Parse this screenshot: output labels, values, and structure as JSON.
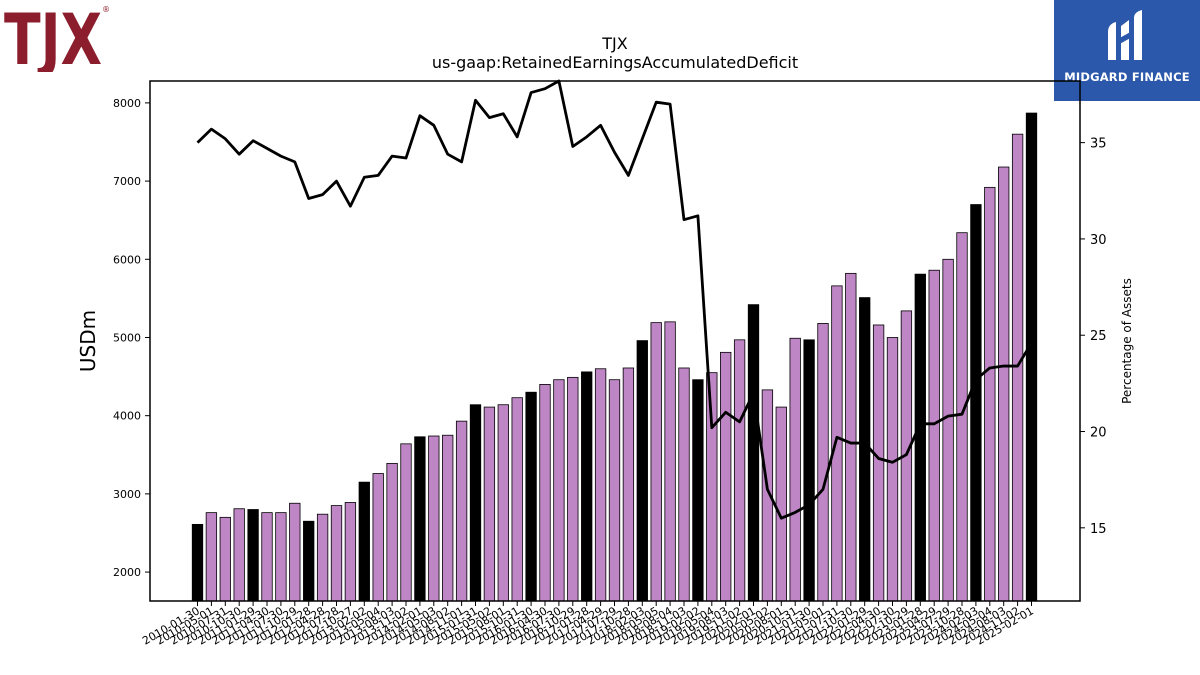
{
  "logos": {
    "left": {
      "text": "TJX",
      "registered": "®",
      "color": "#8c1d2c"
    },
    "right": {
      "text": "MIDGARD FINANCE",
      "background": "#2b58ab",
      "color": "#ffffff"
    }
  },
  "chart_data": {
    "type": "bar",
    "title": "TJX",
    "subtitle": "us-gaap:RetainedEarningsAccumulatedDeficit",
    "ylabel": "USDm",
    "y2label": "Percentage of Assets",
    "ylim": [
      1630,
      8280
    ],
    "y2lim": [
      11.2,
      38.2
    ],
    "yticks": [
      2000,
      3000,
      4000,
      5000,
      6000,
      7000,
      8000
    ],
    "y2ticks": [
      15,
      20,
      25,
      30,
      35
    ],
    "colors": {
      "fiscal_year_end_bar": "#000000",
      "quarter_bar": "#bf86c6",
      "line": "#000000"
    },
    "categories": [
      "2010-01-30",
      "2010-05-01",
      "2010-07-31",
      "2010-10-30",
      "2011-01-29",
      "2011-04-30",
      "2011-07-30",
      "2011-10-29",
      "2012-01-28",
      "2012-04-28",
      "2012-07-28",
      "2012-10-27",
      "2013-02-02",
      "2013-05-04",
      "2013-08-03",
      "2013-11-02",
      "2014-02-01",
      "2014-05-03",
      "2014-08-02",
      "2014-11-01",
      "2015-01-31",
      "2015-05-02",
      "2015-08-01",
      "2015-10-31",
      "2016-01-30",
      "2016-04-30",
      "2016-07-30",
      "2016-10-29",
      "2017-01-28",
      "2017-04-29",
      "2017-07-29",
      "2017-10-28",
      "2018-02-03",
      "2018-05-05",
      "2018-08-04",
      "2018-11-03",
      "2019-02-02",
      "2019-05-04",
      "2019-08-03",
      "2019-11-02",
      "2020-02-01",
      "2020-05-02",
      "2020-08-01",
      "2020-10-31",
      "2021-01-30",
      "2021-05-01",
      "2021-07-31",
      "2021-10-30",
      "2022-01-29",
      "2022-04-30",
      "2022-07-30",
      "2022-10-29",
      "2023-01-28",
      "2023-04-29",
      "2023-07-29",
      "2023-10-28",
      "2024-02-03",
      "2024-05-04",
      "2024-08-03",
      "2024-11-02",
      "2025-02-01"
    ],
    "fiscal_year_end": [
      true,
      false,
      false,
      false,
      true,
      false,
      false,
      false,
      true,
      false,
      false,
      false,
      true,
      false,
      false,
      false,
      true,
      false,
      false,
      false,
      true,
      false,
      false,
      false,
      true,
      false,
      false,
      false,
      true,
      false,
      false,
      false,
      true,
      false,
      false,
      false,
      true,
      false,
      false,
      false,
      true,
      false,
      false,
      false,
      true,
      false,
      false,
      false,
      true,
      false,
      false,
      false,
      true,
      false,
      false,
      false,
      true,
      false,
      false,
      false,
      true
    ],
    "series": [
      {
        "values": [
          2610,
          2760,
          2700,
          2810,
          2800,
          2760,
          2760,
          2880,
          2650,
          2740,
          2850,
          2890,
          3150,
          3260,
          3390,
          3640,
          3730,
          3740,
          3750,
          3930,
          4140,
          4110,
          4140,
          4230,
          4300,
          4400,
          4460,
          4490,
          4560,
          4600,
          4460,
          4610,
          4960,
          5190,
          5200,
          4610,
          4460,
          4550,
          4810,
          4970,
          5420,
          4330,
          4110,
          4990,
          4970,
          5180,
          5660,
          5820,
          5510,
          5160,
          5000,
          5340,
          5810,
          5860,
          6000,
          6340,
          6700,
          6920,
          7180,
          7600,
          7870
        ]
      },
      {
        "axis": "right",
        "values": [
          35.0,
          35.7,
          35.2,
          34.4,
          35.1,
          34.7,
          34.3,
          34.0,
          32.1,
          32.3,
          33.0,
          31.7,
          33.2,
          33.3,
          34.3,
          34.2,
          36.4,
          35.9,
          34.4,
          34.0,
          37.2,
          36.3,
          36.5,
          35.3,
          37.6,
          37.8,
          38.2,
          34.8,
          35.3,
          35.9,
          34.5,
          33.3,
          35.2,
          37.1,
          37.0,
          31.0,
          31.2,
          20.2,
          21.0,
          20.5,
          22.0,
          17.0,
          15.5,
          15.8,
          16.2,
          17.0,
          19.7,
          19.4,
          19.4,
          18.6,
          18.4,
          18.8,
          20.4,
          20.4,
          20.8,
          20.9,
          22.7,
          23.3,
          23.4,
          23.4,
          24.6
        ]
      }
    ]
  }
}
